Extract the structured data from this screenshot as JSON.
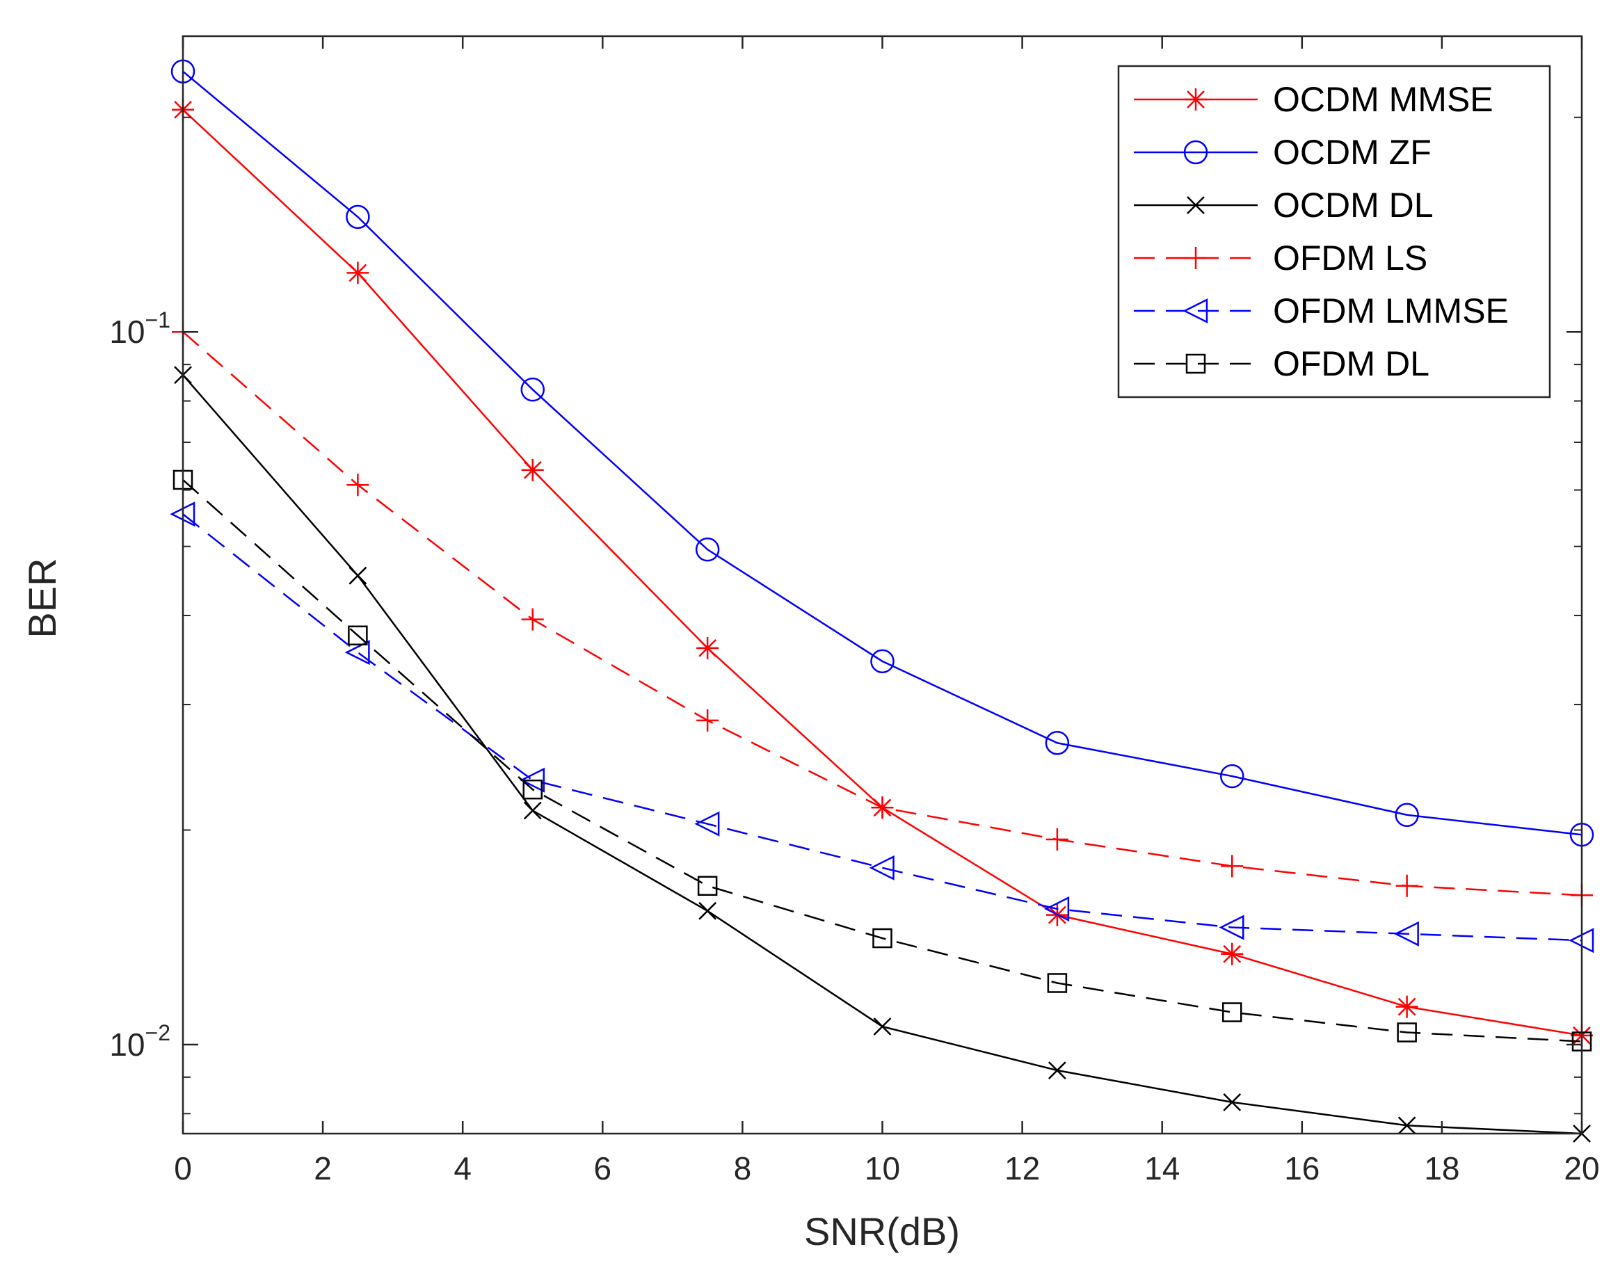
{
  "chart_data": {
    "type": "line",
    "title": "",
    "xlabel": "SNR(dB)",
    "ylabel": "BER",
    "xlim": [
      0,
      20
    ],
    "ylim": [
      0.0075,
      0.26
    ],
    "yscale": "log",
    "x": [
      0,
      2.5,
      5,
      7.5,
      10,
      12.5,
      15,
      17.5,
      20
    ],
    "x_ticks": [
      0,
      2,
      4,
      6,
      8,
      10,
      12,
      14,
      16,
      18,
      20
    ],
    "x_tick_labels": [
      "0",
      "2",
      "4",
      "6",
      "8",
      "10",
      "12",
      "14",
      "16",
      "18",
      "20"
    ],
    "y_ticks": [
      0.01,
      0.1
    ],
    "y_tick_labels": [
      {
        "base": "10",
        "exp": "−2"
      },
      {
        "base": "10",
        "exp": "−1"
      }
    ],
    "grid": false,
    "legend_position": "top-right",
    "series": [
      {
        "name": "OCDM MMSE",
        "color": "#ff0000",
        "dash": "solid",
        "marker": "asterisk",
        "values": [
          0.205,
          0.121,
          0.064,
          0.036,
          0.0215,
          0.0152,
          0.0134,
          0.0113,
          0.0103
        ]
      },
      {
        "name": "OCDM ZF",
        "color": "#0000ff",
        "dash": "solid",
        "marker": "circle",
        "values": [
          0.232,
          0.145,
          0.083,
          0.0495,
          0.0345,
          0.0265,
          0.0238,
          0.021,
          0.0197
        ]
      },
      {
        "name": "OCDM DL",
        "color": "#000000",
        "dash": "solid",
        "marker": "x",
        "values": [
          0.087,
          0.0455,
          0.0213,
          0.0154,
          0.0106,
          0.0092,
          0.0083,
          0.0077,
          0.0075
        ]
      },
      {
        "name": "OFDM LS",
        "color": "#ff0000",
        "dash": "dashed",
        "marker": "plus",
        "values": [
          0.1,
          0.061,
          0.0395,
          0.0285,
          0.0215,
          0.0194,
          0.0178,
          0.0167,
          0.0162
        ]
      },
      {
        "name": "OFDM LMMSE",
        "color": "#0000ff",
        "dash": "dashed",
        "marker": "triangle-left",
        "values": [
          0.0555,
          0.0355,
          0.0235,
          0.0204,
          0.0177,
          0.0155,
          0.0146,
          0.0143,
          0.014
        ]
      },
      {
        "name": "OFDM DL",
        "color": "#000000",
        "dash": "dashed",
        "marker": "square",
        "values": [
          0.062,
          0.0375,
          0.0228,
          0.0167,
          0.0141,
          0.0122,
          0.0111,
          0.0104,
          0.0101
        ]
      }
    ]
  }
}
